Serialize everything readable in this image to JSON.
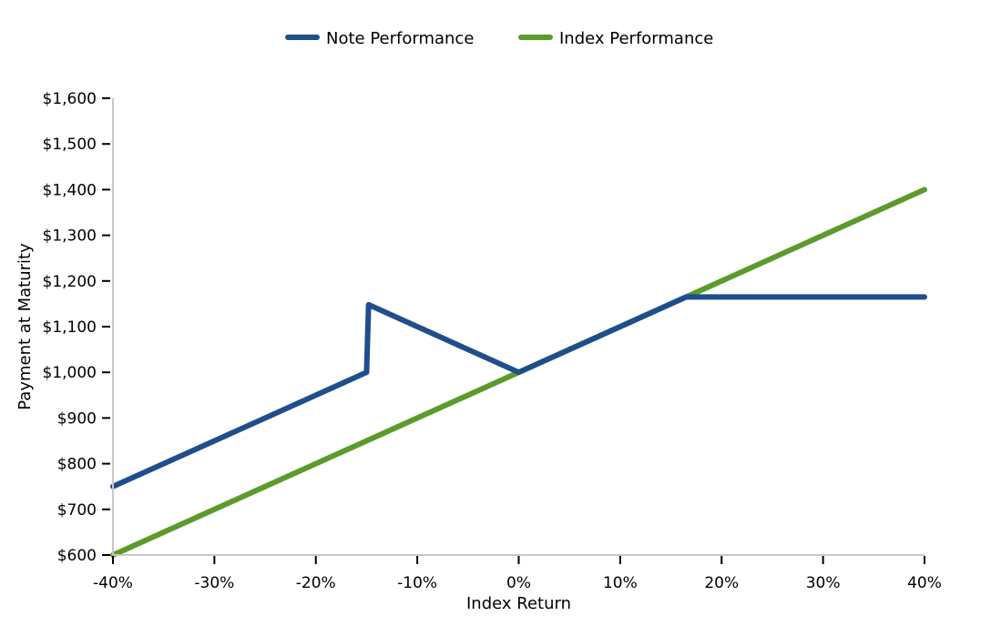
{
  "chart_data": {
    "type": "line",
    "title": "",
    "xlabel": "Index Return",
    "ylabel": "Payment at Maturity",
    "xlim": [
      -40,
      40
    ],
    "ylim": [
      600,
      1600
    ],
    "x_ticks": [
      -40,
      -30,
      -20,
      -10,
      0,
      10,
      20,
      30,
      40
    ],
    "x_tick_labels": [
      "-40%",
      "-30%",
      "-20%",
      "-10%",
      "0%",
      "10%",
      "20%",
      "30%",
      "40%"
    ],
    "y_ticks": [
      600,
      700,
      800,
      900,
      1000,
      1100,
      1200,
      1300,
      1400,
      1500,
      1600
    ],
    "y_tick_labels": [
      "$600",
      "$700",
      "$800",
      "$900",
      "$1,000",
      "$1,100",
      "$1,200",
      "$1,300",
      "$1,400",
      "$1,500",
      "$1,600"
    ],
    "grid": false,
    "legend_position": "top-center",
    "series": [
      {
        "name": "Note Performance",
        "color": "#1f4e8c",
        "x": [
          -40,
          -15,
          -14.8,
          0,
          16.5,
          40
        ],
        "y": [
          750,
          1000,
          1148,
          1000,
          1165,
          1165
        ]
      },
      {
        "name": "Index Performance",
        "color": "#5b9b2b",
        "x": [
          -40,
          40
        ],
        "y": [
          600,
          1400
        ]
      }
    ]
  }
}
